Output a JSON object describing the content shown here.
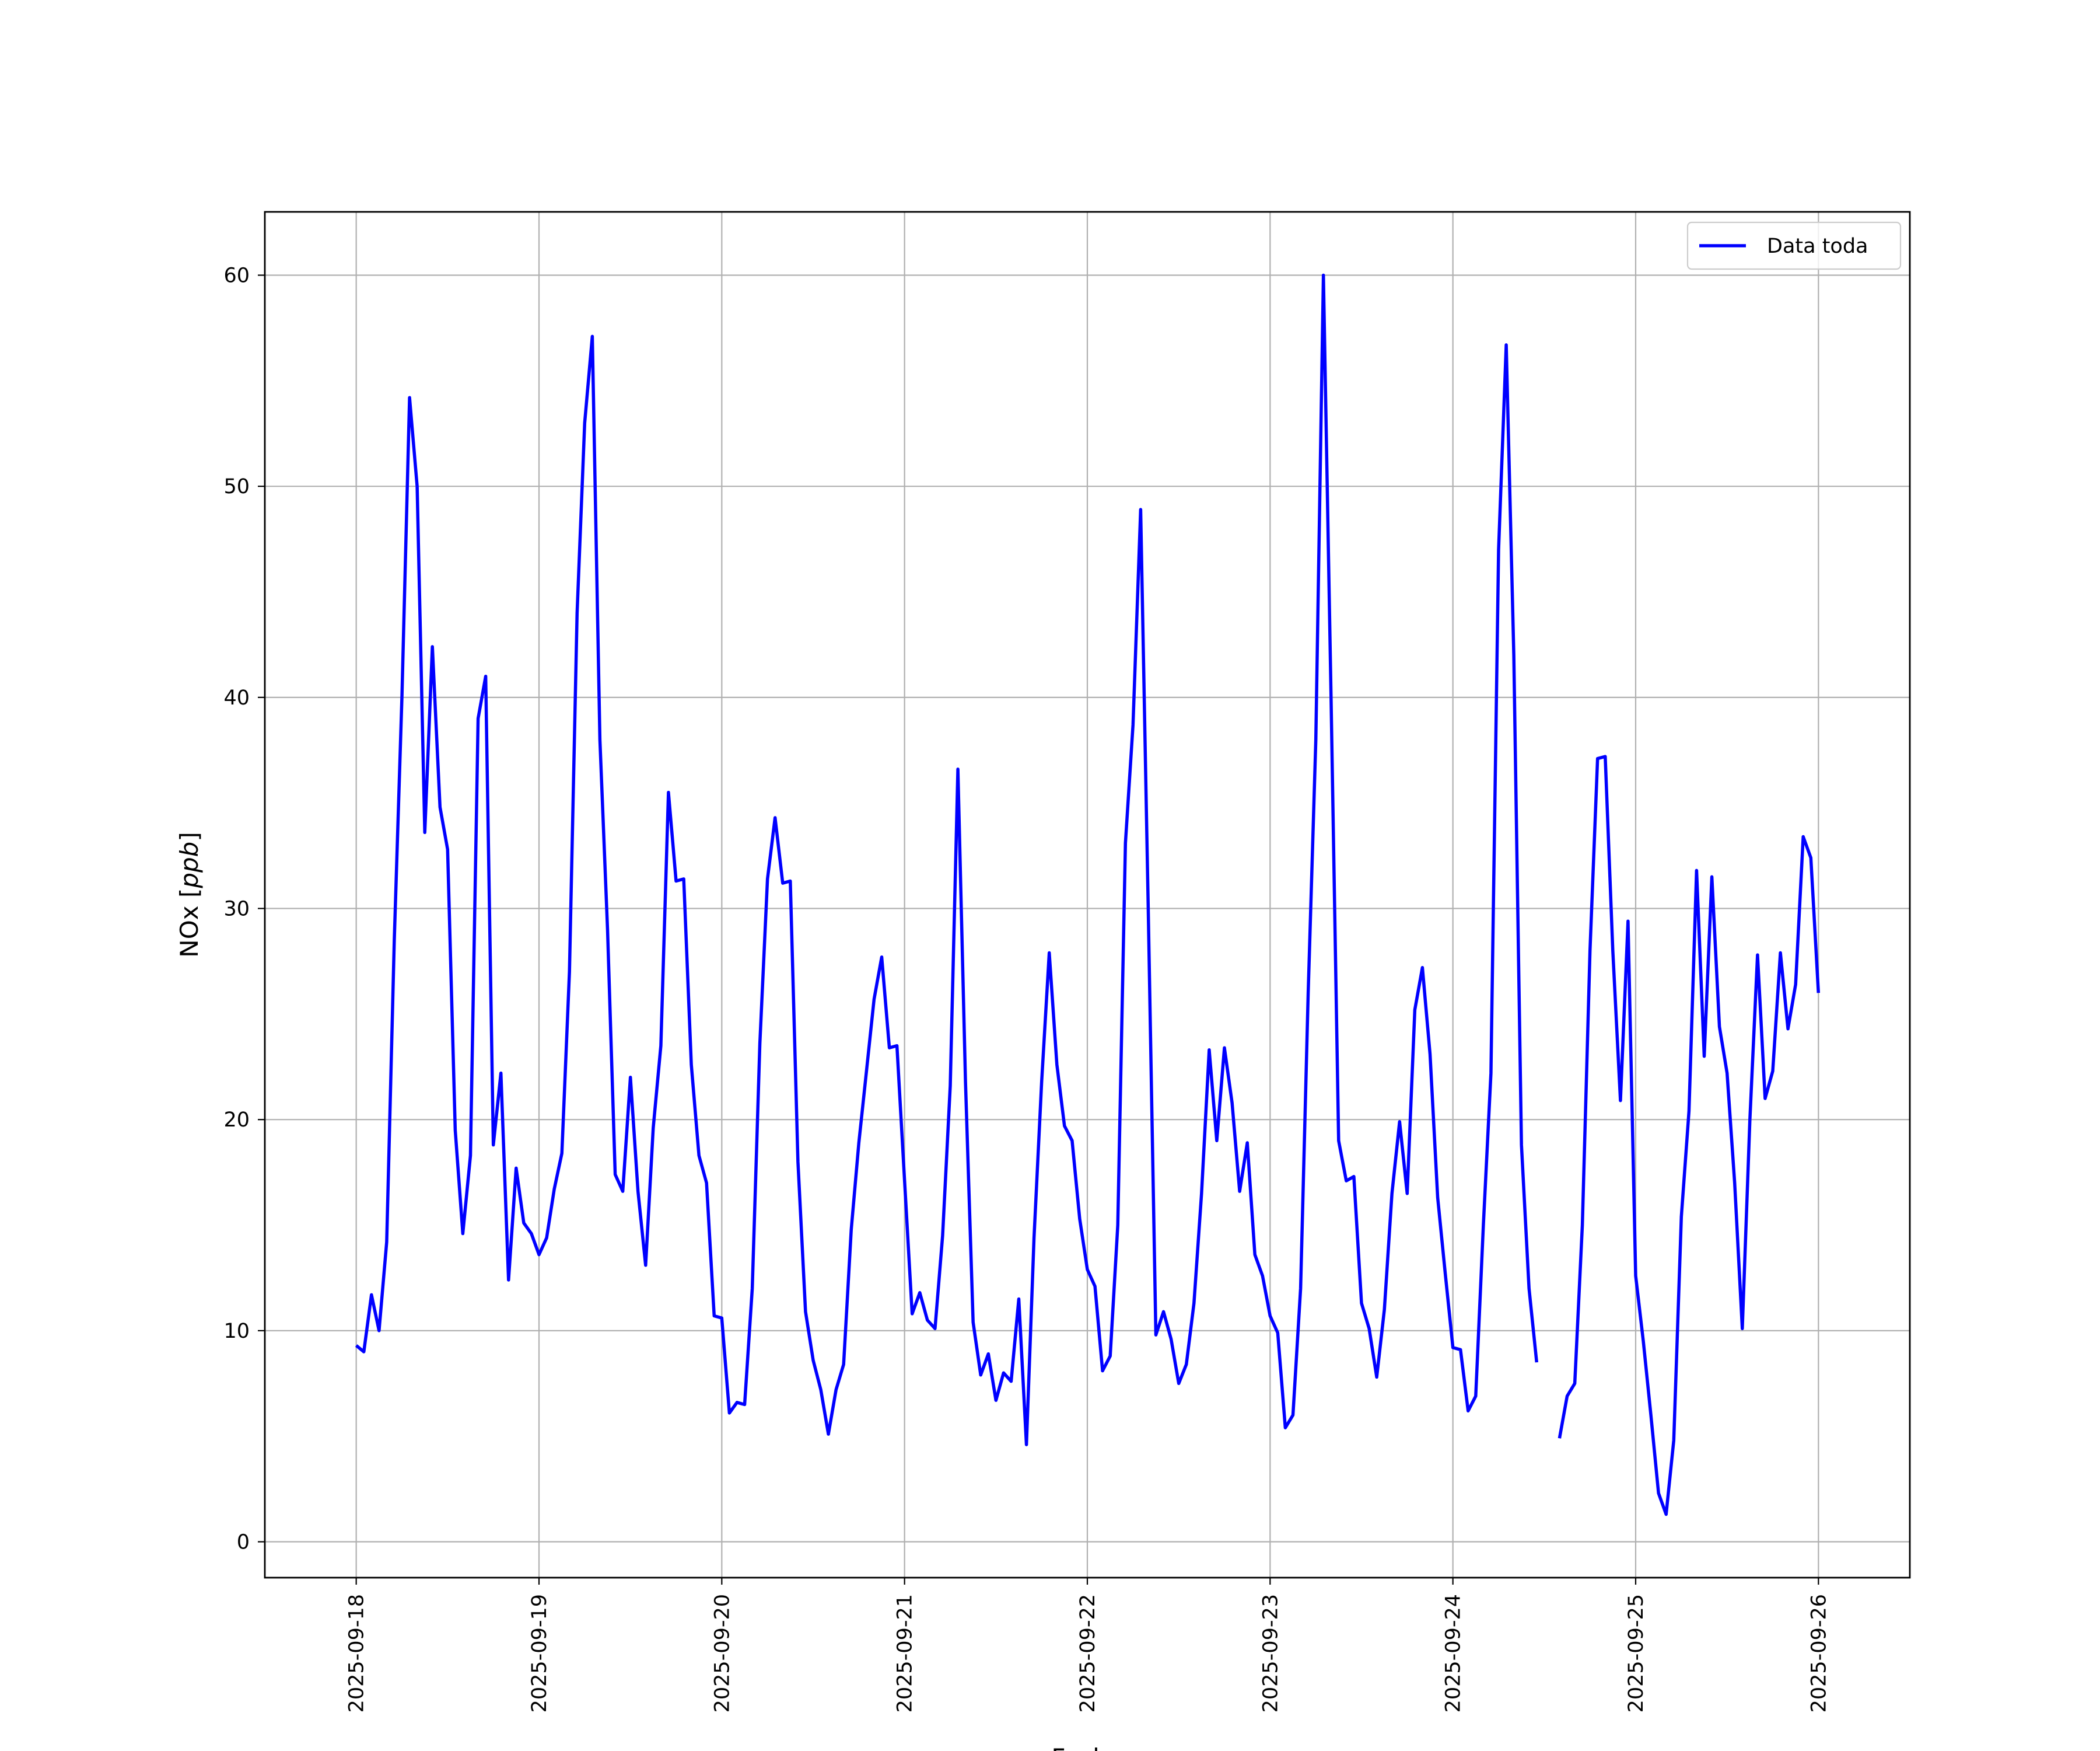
{
  "chart_data": {
    "type": "line",
    "title": "",
    "xlabel": "Fecha",
    "ylabel_main": "NOx [",
    "ylabel_unit": "ppb",
    "ylabel_close": "]",
    "x_type": "date",
    "xlim": [
      "2025-09-17T12:00",
      "2025-09-26T12:00"
    ],
    "ylim": [
      -1.7,
      63
    ],
    "x_ticks": [
      "2025-09-18",
      "2025-09-19",
      "2025-09-20",
      "2025-09-21",
      "2025-09-22",
      "2025-09-23",
      "2025-09-24",
      "2025-09-25",
      "2025-09-26"
    ],
    "y_ticks": [
      0,
      10,
      20,
      30,
      40,
      50,
      60
    ],
    "grid": true,
    "legend": {
      "position": "top-right"
    },
    "series": [
      {
        "name": "Data toda",
        "color": "#0000ff",
        "start": "2025-09-18T00:00",
        "step_hours": 1,
        "values": [
          9.3,
          9.0,
          11.7,
          10.0,
          14.2,
          28.5,
          40.0,
          54.2,
          50.0,
          33.6,
          42.4,
          34.8,
          32.8,
          19.5,
          14.6,
          18.3,
          39.0,
          41.0,
          18.8,
          22.2,
          12.4,
          17.7,
          15.1,
          14.6,
          13.6,
          14.4,
          16.7,
          18.4,
          27.0,
          44.0,
          53.0,
          57.1,
          38.0,
          29.0,
          17.4,
          16.6,
          22.0,
          16.6,
          13.1,
          19.6,
          23.5,
          35.5,
          31.3,
          31.4,
          22.6,
          18.3,
          17.0,
          10.7,
          10.6,
          6.1,
          6.6,
          6.5,
          12.0,
          23.6,
          31.4,
          34.3,
          31.2,
          31.3,
          18.0,
          10.9,
          8.6,
          7.2,
          5.1,
          7.2,
          8.4,
          14.8,
          18.9,
          22.3,
          25.7,
          27.7,
          23.4,
          23.5,
          17.1,
          10.8,
          11.8,
          10.5,
          10.1,
          14.5,
          21.6,
          36.6,
          21.8,
          10.4,
          7.9,
          8.9,
          6.7,
          8.0,
          7.6,
          11.5,
          4.6,
          14.4,
          21.8,
          27.9,
          22.6,
          19.7,
          19.0,
          15.3,
          12.9,
          12.1,
          8.1,
          8.8,
          15.0,
          33.1,
          38.7,
          48.9,
          30.0,
          9.8,
          10.9,
          9.6,
          7.5,
          8.4,
          11.3,
          16.5,
          23.3,
          19.0,
          23.4,
          20.8,
          16.6,
          18.9,
          13.6,
          12.6,
          10.7,
          9.9,
          5.4,
          6.0,
          12.0,
          26.0,
          38.0,
          60.0,
          40.0,
          19.0,
          17.1,
          17.3,
          11.3,
          10.1,
          7.8,
          11.0,
          16.5,
          19.9,
          16.5,
          25.2,
          27.2,
          23.1,
          16.3,
          12.7,
          9.2,
          9.1,
          6.2,
          6.9,
          15.0,
          22.2,
          47.0,
          56.7,
          42.0,
          18.8,
          12.0,
          8.5,
          null,
          null,
          4.9,
          6.9,
          7.5,
          15.0,
          28.0,
          37.1,
          37.2,
          28.0,
          20.9,
          29.4,
          12.6,
          9.5,
          6.0,
          2.3,
          1.3,
          4.8,
          15.4,
          20.4,
          31.8,
          23.0,
          31.5,
          24.4,
          22.2,
          17.0,
          10.1,
          20.0,
          27.8,
          21.0,
          22.3,
          27.9,
          24.3,
          26.4,
          33.4,
          32.4,
          26.0
        ]
      }
    ]
  }
}
